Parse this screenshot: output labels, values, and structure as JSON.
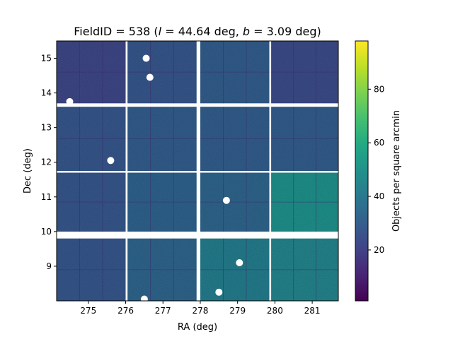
{
  "chart_data": {
    "type": "heatmap",
    "title": {
      "prefix": "FieldID = 538 (",
      "l_var": "l",
      "l_part": " = 44.64 deg, ",
      "b_var": "b",
      "b_part": " = 3.09 deg)"
    },
    "xlabel": "RA (deg)",
    "ylabel": "Dec (deg)",
    "xlim": [
      274.15,
      281.7
    ],
    "ylim": [
      8.0,
      15.5
    ],
    "xticks": [
      "275",
      "276",
      "277",
      "278",
      "279",
      "280",
      "281"
    ],
    "yticks": [
      "9",
      "10",
      "11",
      "12",
      "13",
      "14",
      "15"
    ],
    "colorbar": {
      "label": "Objects per square arcmin",
      "range": [
        1,
        98
      ],
      "ticks": [
        "20",
        "40",
        "60",
        "80"
      ],
      "colormap": "viridis"
    },
    "ccd_grid": {
      "columns": [
        {
          "ra": [
            274.15,
            276.0
          ]
        },
        {
          "ra": [
            276.05,
            277.9
          ]
        },
        {
          "ra": [
            278.0,
            279.85
          ]
        },
        {
          "ra": [
            279.9,
            281.7
          ]
        }
      ],
      "rows": [
        {
          "dec": [
            13.7,
            15.5
          ]
        },
        {
          "dec": [
            11.75,
            13.6
          ]
        },
        {
          "dec": [
            10.0,
            11.7
          ]
        },
        {
          "dec": [
            8.0,
            9.8
          ]
        }
      ],
      "density": [
        [
          22,
          28,
          30,
          24
        ],
        [
          28,
          30,
          30,
          30
        ],
        [
          28,
          32,
          33,
          50
        ],
        [
          28,
          33,
          42,
          45
        ]
      ]
    },
    "masked_holes": [
      {
        "ra": 276.55,
        "dec": 15.0
      },
      {
        "ra": 276.65,
        "dec": 14.45
      },
      {
        "ra": 274.5,
        "dec": 13.75
      },
      {
        "ra": 275.6,
        "dec": 12.05
      },
      {
        "ra": 278.7,
        "dec": 10.9
      },
      {
        "ra": 279.05,
        "dec": 9.1
      },
      {
        "ra": 278.5,
        "dec": 8.25
      },
      {
        "ra": 276.5,
        "dec": 8.05
      }
    ]
  }
}
